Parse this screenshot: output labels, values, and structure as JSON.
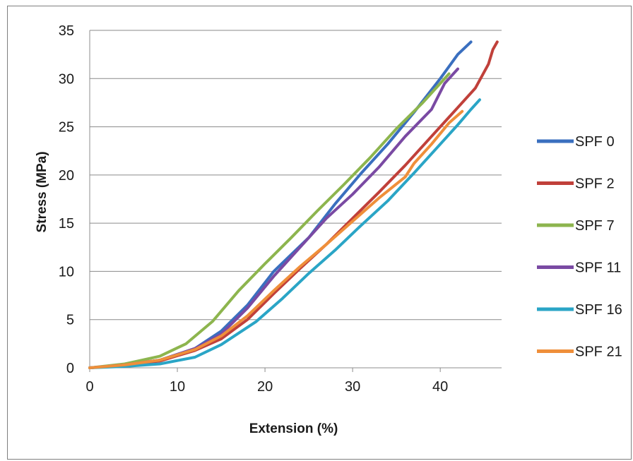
{
  "chart_data": {
    "type": "line",
    "title": "",
    "xlabel": "Extension (%)",
    "ylabel": "Stress (MPa)",
    "xlim": [
      0,
      47
    ],
    "ylim": [
      0,
      35
    ],
    "x_ticks": [
      "0",
      "10",
      "20",
      "30",
      "40"
    ],
    "y_ticks": [
      "0",
      "5",
      "10",
      "15",
      "20",
      "25",
      "30",
      "35"
    ],
    "grid": "horizontal",
    "legend_position": "right",
    "series": [
      {
        "name": "SPF 0",
        "color": "#3a6fbf",
        "points": [
          [
            0,
            0
          ],
          [
            4,
            0.3
          ],
          [
            8,
            0.8
          ],
          [
            12,
            2
          ],
          [
            15,
            3.8
          ],
          [
            18,
            6.5
          ],
          [
            21,
            10
          ],
          [
            25,
            13.5
          ],
          [
            28,
            17
          ],
          [
            31,
            20.2
          ],
          [
            34,
            23.2
          ],
          [
            37,
            26.5
          ],
          [
            40,
            30
          ],
          [
            42,
            32.5
          ],
          [
            43.5,
            33.8
          ]
        ]
      },
      {
        "name": "SPF 2",
        "color": "#c0403a",
        "points": [
          [
            0,
            0
          ],
          [
            4,
            0.25
          ],
          [
            8,
            0.7
          ],
          [
            12,
            1.8
          ],
          [
            15,
            3
          ],
          [
            18,
            5
          ],
          [
            21,
            7.7
          ],
          [
            24,
            10.3
          ],
          [
            27,
            12.8
          ],
          [
            30,
            15.5
          ],
          [
            33,
            18.2
          ],
          [
            36,
            21
          ],
          [
            39,
            24
          ],
          [
            42,
            27
          ],
          [
            44,
            29
          ],
          [
            45.5,
            31.5
          ],
          [
            46,
            33
          ],
          [
            46.5,
            33.8
          ]
        ]
      },
      {
        "name": "SPF 7",
        "color": "#8db54e",
        "points": [
          [
            0,
            0
          ],
          [
            4,
            0.4
          ],
          [
            8,
            1.2
          ],
          [
            11,
            2.5
          ],
          [
            14,
            4.8
          ],
          [
            17,
            8
          ],
          [
            20,
            10.8
          ],
          [
            23,
            13.5
          ],
          [
            26,
            16.3
          ],
          [
            29,
            19
          ],
          [
            32,
            21.8
          ],
          [
            35,
            24.8
          ],
          [
            38,
            27.5
          ],
          [
            40,
            29.5
          ],
          [
            41,
            30.5
          ]
        ]
      },
      {
        "name": "SPF 11",
        "color": "#7a4aa3",
        "points": [
          [
            0,
            0
          ],
          [
            4,
            0.3
          ],
          [
            8,
            0.8
          ],
          [
            12,
            2
          ],
          [
            15,
            3.5
          ],
          [
            18,
            6.2
          ],
          [
            21,
            9.5
          ],
          [
            24,
            12.5
          ],
          [
            27,
            15.5
          ],
          [
            30,
            18
          ],
          [
            33,
            20.8
          ],
          [
            36,
            24
          ],
          [
            39,
            26.8
          ],
          [
            40.5,
            29.5
          ],
          [
            42,
            31
          ]
        ]
      },
      {
        "name": "SPF 16",
        "color": "#2aa5c6",
        "points": [
          [
            0,
            0
          ],
          [
            4,
            0.15
          ],
          [
            8,
            0.4
          ],
          [
            12,
            1.1
          ],
          [
            15,
            2.4
          ],
          [
            19,
            4.8
          ],
          [
            22,
            7.2
          ],
          [
            25,
            9.8
          ],
          [
            28,
            12.2
          ],
          [
            31,
            14.8
          ],
          [
            34,
            17.3
          ],
          [
            37,
            20.2
          ],
          [
            40,
            23.2
          ],
          [
            42,
            25.2
          ],
          [
            43.5,
            26.8
          ],
          [
            44.5,
            27.8
          ]
        ]
      },
      {
        "name": "SPF 21",
        "color": "#ef8f3a",
        "points": [
          [
            0,
            0
          ],
          [
            4,
            0.3
          ],
          [
            8,
            0.8
          ],
          [
            12,
            1.9
          ],
          [
            15,
            3.3
          ],
          [
            18,
            5.4
          ],
          [
            21,
            8
          ],
          [
            24,
            10.5
          ],
          [
            27,
            12.8
          ],
          [
            30,
            15.2
          ],
          [
            33,
            17.6
          ],
          [
            36,
            19.8
          ],
          [
            37,
            21.2
          ],
          [
            39,
            23.2
          ],
          [
            41,
            25.4
          ],
          [
            42.5,
            26.6
          ]
        ]
      }
    ]
  }
}
